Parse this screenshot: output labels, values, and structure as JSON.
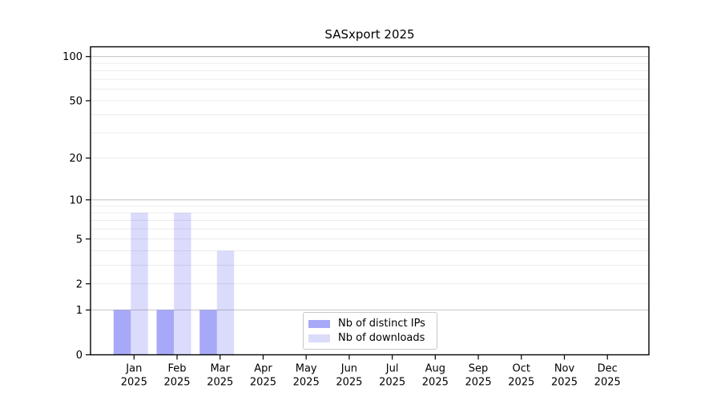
{
  "chart_data": {
    "type": "bar",
    "title": "SASxport 2025",
    "x": {
      "months": [
        "Jan",
        "Feb",
        "Mar",
        "Apr",
        "May",
        "Jun",
        "Jul",
        "Aug",
        "Sep",
        "Oct",
        "Nov",
        "Dec"
      ],
      "year": "2025"
    },
    "series": [
      {
        "name": "Nb of distinct IPs",
        "swatch_color": "#a8a8f8",
        "fill_color": "#4a4af0",
        "fill_opacity": 0.48,
        "values": [
          1,
          1,
          1,
          0,
          0,
          0,
          0,
          0,
          0,
          0,
          0,
          0
        ]
      },
      {
        "name": "Nb of downloads",
        "swatch_color": "#dbdbfa",
        "fill_color": "#4a4af0",
        "fill_opacity": 0.2,
        "values": [
          8,
          8,
          4,
          0,
          0,
          0,
          0,
          0,
          0,
          0,
          0,
          0
        ]
      }
    ],
    "y_axis": {
      "scale": "log10(value+1)",
      "tick_labels": [
        0,
        1,
        2,
        5,
        10,
        20,
        50,
        100
      ],
      "minor_gridlines": [
        2,
        3,
        4,
        5,
        6,
        7,
        8,
        9,
        20,
        30,
        40,
        50,
        60,
        70,
        80,
        90
      ],
      "major_gridlines": [
        1,
        10,
        100
      ],
      "range": [
        0,
        116
      ]
    },
    "legend": {
      "location": "lower center"
    },
    "colors": {
      "grid_minor": "#ececec",
      "grid_major": "#c6c6c6",
      "spine": "#000000",
      "text": "#000000"
    }
  }
}
